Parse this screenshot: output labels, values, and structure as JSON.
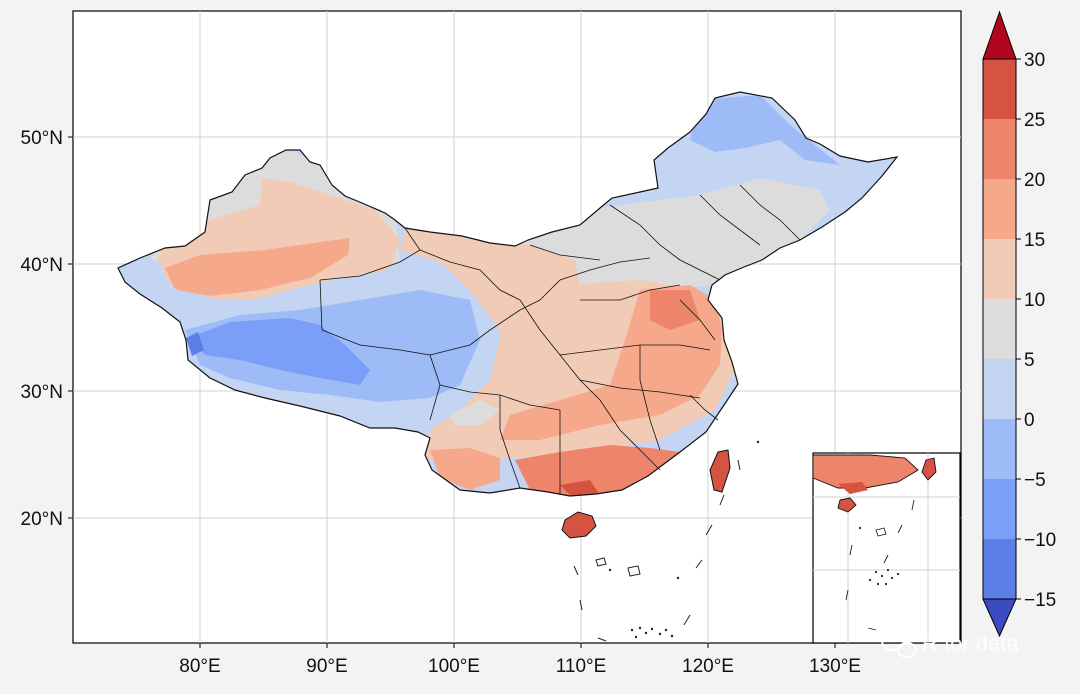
{
  "map": {
    "lon_ticks": [
      "80°E",
      "90°E",
      "100°E",
      "110°E",
      "120°E",
      "130°E"
    ],
    "lat_ticks": [
      "20°N",
      "30°N",
      "40°N",
      "50°N"
    ],
    "lon_values": [
      80,
      90,
      100,
      110,
      120,
      130
    ],
    "lat_values": [
      20,
      30,
      40,
      50
    ],
    "lon_range": [
      70,
      140
    ],
    "lat_range": [
      10,
      60
    ],
    "gridlines": true,
    "inset": true
  },
  "colorbar": {
    "labels": [
      "30",
      "25",
      "20",
      "15",
      "10",
      "5",
      "0",
      "−5",
      "−10",
      "−15"
    ],
    "levels": [
      30,
      25,
      20,
      15,
      10,
      5,
      0,
      -5,
      -10,
      -15
    ],
    "colors": [
      "#d55441",
      "#ee8469",
      "#f6a98a",
      "#f2cbb7",
      "#dcdcdc",
      "#c4d5f3",
      "#9dbbf7",
      "#7b9ff9",
      "#5b7ee8"
    ],
    "extend_max_color": "#b2061e",
    "extend_min_color": "#3a4cc0"
  },
  "palette": {
    "vcold": "#5b7ee8",
    "cold": "#7b9ff9",
    "cool": "#9dbbf7",
    "light": "#c4d5f3",
    "grey": "#dcdcdc",
    "peach": "#f2cbb7",
    "orange": "#f6a98a",
    "warm": "#ee8469",
    "hot": "#d55441"
  },
  "watermark": {
    "text": "R for data",
    "icon": "wechat-icon"
  }
}
